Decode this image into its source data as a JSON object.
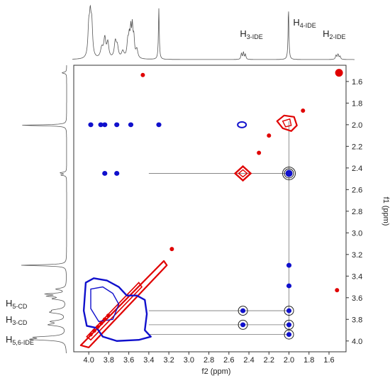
{
  "chart_data": {
    "type": "2D NMR contour (COSY / ROESY-like) with 1D projections",
    "xlabel": "f2 (ppm)",
    "ylabel": "f1 (ppm)",
    "xlim": [
      4.15,
      1.43
    ],
    "ylim": [
      1.45,
      4.1
    ],
    "x_reversed": true,
    "y_reversed": true,
    "x_ticks": [
      4.0,
      3.8,
      3.6,
      3.4,
      3.2,
      3.0,
      2.8,
      2.6,
      2.4,
      2.2,
      2.0,
      1.8,
      1.6
    ],
    "x_tick_labels": [
      "4.0",
      "3.8",
      "3.6",
      "3.4",
      "3.2",
      "3.0",
      "2.8",
      "2.6",
      "2.4",
      "2.2",
      "2.0",
      "1.8",
      "1.6"
    ],
    "y_ticks": [
      1.6,
      1.8,
      2.0,
      2.2,
      2.4,
      2.6,
      2.8,
      3.0,
      3.2,
      3.4,
      3.6,
      3.8,
      4.0
    ],
    "y_tick_labels": [
      "1.6",
      "1.8",
      "2.0",
      "2.2",
      "2.4",
      "2.6",
      "2.8",
      "3.0",
      "3.2",
      "3.4",
      "3.6",
      "3.8",
      "4.0"
    ],
    "top_peak_labels": [
      {
        "main": "H",
        "sub": "3-IDE",
        "ppm": 2.46
      },
      {
        "main": "H",
        "sub": "4-IDE",
        "ppm": 2.0
      },
      {
        "main": "H",
        "sub": "2-IDE",
        "ppm": 1.52
      }
    ],
    "left_peak_labels": [
      {
        "main": "H",
        "sub": "5-CD",
        "ppm": 3.72
      },
      {
        "main": "H",
        "sub": "3-CD",
        "ppm": 3.85
      },
      {
        "main": "H",
        "sub": "5,6-IDE",
        "ppm": 4.0
      }
    ],
    "colors": {
      "negative": "#e00000",
      "positive": "#1010cc",
      "axis": "#333333",
      "spectrum": "#555555"
    },
    "positive_cross_peaks": [
      {
        "x": 3.98,
        "y": 2.0
      },
      {
        "x": 3.88,
        "y": 2.0
      },
      {
        "x": 3.84,
        "y": 2.0
      },
      {
        "x": 3.72,
        "y": 2.0
      },
      {
        "x": 3.58,
        "y": 2.0
      },
      {
        "x": 3.3,
        "y": 2.0
      },
      {
        "x": 2.47,
        "y": 2.0
      },
      {
        "x": 3.84,
        "y": 2.45
      },
      {
        "x": 3.72,
        "y": 2.45
      },
      {
        "x": 2.0,
        "y": 2.45
      },
      {
        "x": 2.46,
        "y": 3.72
      },
      {
        "x": 2.0,
        "y": 3.72
      },
      {
        "x": 2.46,
        "y": 3.85
      },
      {
        "x": 2.0,
        "y": 3.85
      },
      {
        "x": 2.0,
        "y": 3.94
      },
      {
        "x": 2.0,
        "y": 3.3
      },
      {
        "x": 2.0,
        "y": 3.49
      }
    ],
    "negative_peaks": [
      {
        "x": 3.46,
        "y": 1.54
      },
      {
        "x": 1.5,
        "y": 1.52
      },
      {
        "x": 1.86,
        "y": 1.87
      },
      {
        "x": 2.46,
        "y": 2.45
      },
      {
        "x": 2.2,
        "y": 2.1
      },
      {
        "x": 2.3,
        "y": 2.26
      },
      {
        "x": 3.17,
        "y": 3.15
      },
      {
        "x": 1.52,
        "y": 3.53
      }
    ],
    "circled_peaks": [
      {
        "x": 2.0,
        "y": 2.45
      },
      {
        "x": 2.46,
        "y": 3.72
      },
      {
        "x": 2.0,
        "y": 3.72
      },
      {
        "x": 2.46,
        "y": 3.85
      },
      {
        "x": 2.0,
        "y": 3.85
      },
      {
        "x": 2.0,
        "y": 3.94
      }
    ]
  }
}
